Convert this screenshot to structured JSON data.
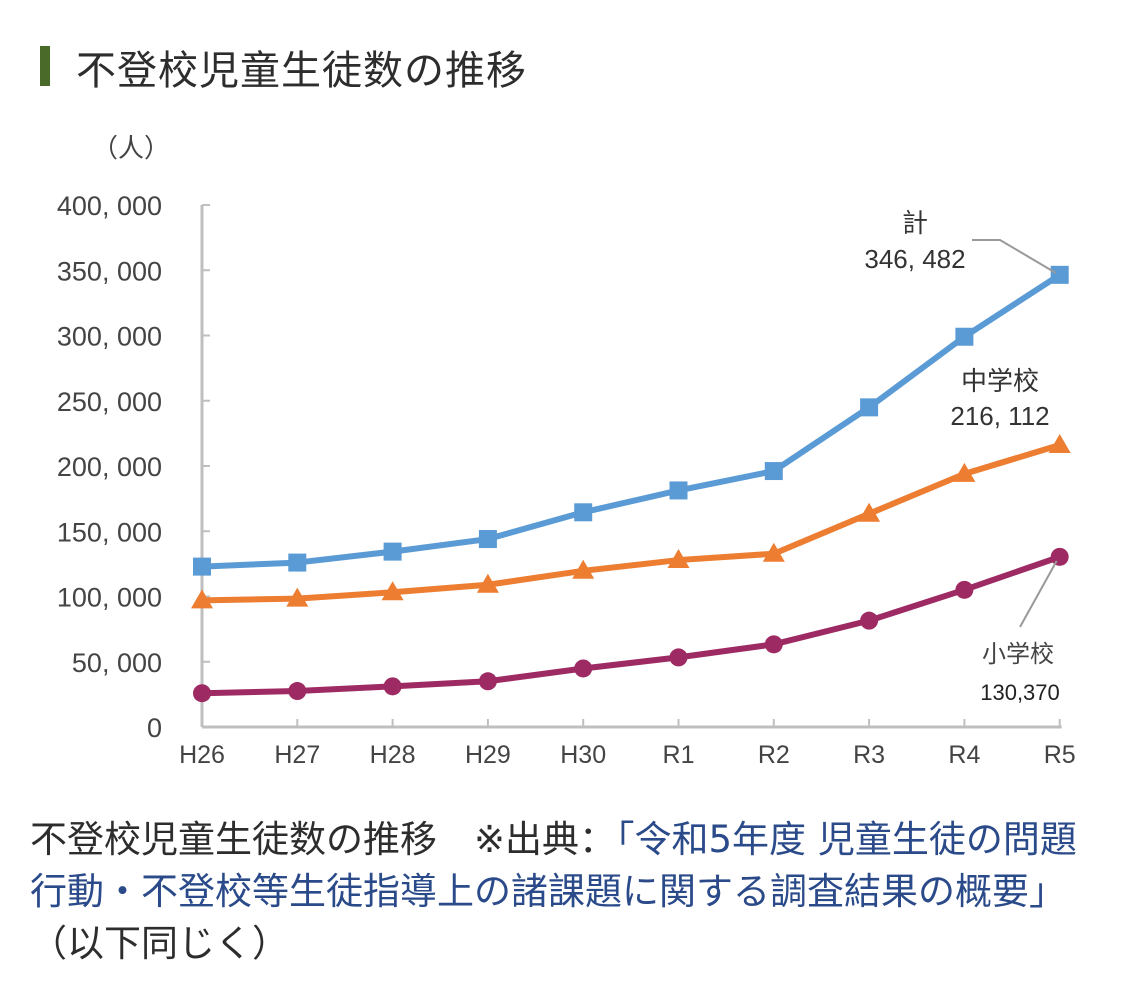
{
  "title": "不登校児童生徒数の推移",
  "unit_label": "（人）",
  "caption": {
    "prefix": "不登校児童生徒数の推移　※出典：",
    "source_link": "「令和5年度 児童生徒の問題行動・不登校等生徒指導上の諸課題に関する調査結果の概要」",
    "suffix": "（以下同じく）"
  },
  "colors": {
    "title_bar": "#4a6a2a",
    "total": "#5b9bd5",
    "junior_high": "#ed7d31",
    "elementary": "#9e2a63",
    "axis": "#bfbfbf",
    "link": "#2a4a8a"
  },
  "chart_data": {
    "type": "line",
    "title": "不登校児童生徒数の推移",
    "xlabel": "",
    "ylabel": "（人）",
    "categories": [
      "H26",
      "H27",
      "H28",
      "H29",
      "H30",
      "R1",
      "R2",
      "R3",
      "R4",
      "R5"
    ],
    "ylim": [
      0,
      400000
    ],
    "yticks": [
      0,
      50000,
      100000,
      150000,
      200000,
      250000,
      300000,
      350000,
      400000
    ],
    "ytick_labels": [
      "0",
      "50, 000",
      "100, 000",
      "150, 000",
      "200, 000",
      "250, 000",
      "300, 000",
      "350, 000",
      "400, 000"
    ],
    "grid": false,
    "series": [
      {
        "name": "計",
        "key": "total",
        "marker": "square",
        "values": [
          122897,
          125991,
          134398,
          144031,
          164528,
          181272,
          196127,
          244940,
          299048,
          346482
        ],
        "end_label": "計",
        "end_value_label": "346, 482"
      },
      {
        "name": "中学校",
        "key": "junior_high",
        "marker": "triangle",
        "values": [
          97033,
          98408,
          103235,
          108999,
          119687,
          127922,
          132777,
          163442,
          193936,
          216112
        ],
        "end_label": "中学校",
        "end_value_label": "216, 112"
      },
      {
        "name": "小学校",
        "key": "elementary",
        "marker": "circle",
        "values": [
          25864,
          27583,
          31163,
          35032,
          44841,
          53350,
          63350,
          81498,
          105112,
          130370
        ],
        "end_label": "小学校",
        "end_value_label": "130,370"
      }
    ]
  }
}
